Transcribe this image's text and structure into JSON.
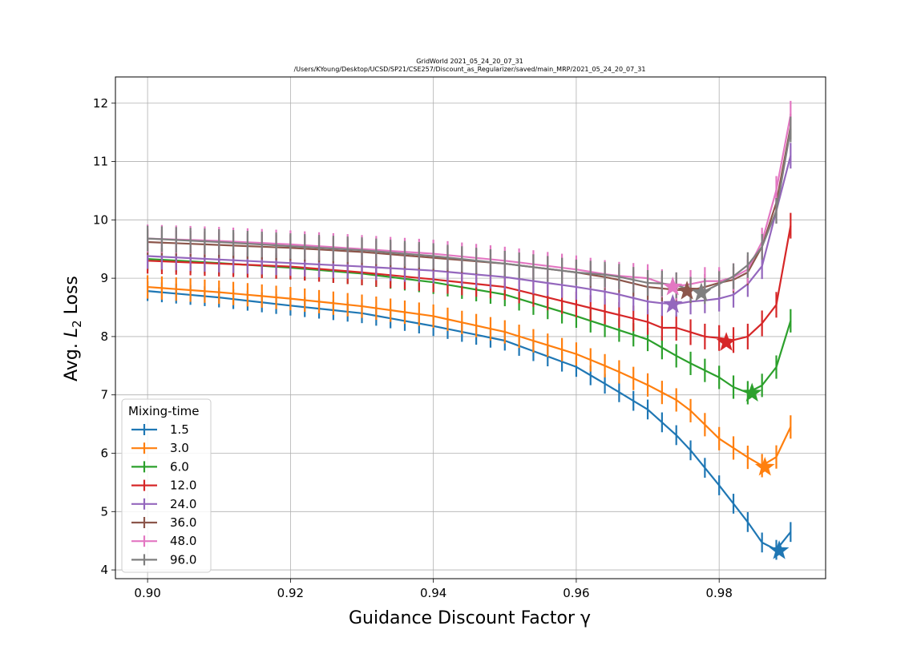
{
  "chart_data": {
    "type": "line",
    "title": "GridWorld  2021_05_24_20_07_31",
    "subtitle": "/Users/KYoung/Desktop/UCSD/SP21/CSE257/Discount_as_Regularizer/saved/main_MRP/2021_05_24_20_07_31",
    "xlabel": "Guidance Discount Factor γ",
    "ylabel_prefix": "Avg. ",
    "ylabel_var": "L",
    "ylabel_sub": "2",
    "ylabel_suffix": " Loss",
    "xlim": [
      0.8955,
      0.9949
    ],
    "ylim": [
      3.85,
      12.45
    ],
    "xticks": [
      0.9,
      0.92,
      0.94,
      0.96,
      0.98
    ],
    "xtick_labels": [
      "0.90",
      "0.92",
      "0.94",
      "0.96",
      "0.98"
    ],
    "yticks": [
      4,
      5,
      6,
      7,
      8,
      9,
      10,
      11,
      12
    ],
    "ytick_labels": [
      "4",
      "5",
      "6",
      "7",
      "8",
      "9",
      "10",
      "11",
      "12"
    ],
    "grid": true,
    "legend_title": "Mixing-time",
    "legend_position": "lower-left",
    "x": {
      "start": 0.9,
      "step": 0.002,
      "count": 46
    },
    "series": [
      {
        "name": "1.5",
        "color": "#1f77b4",
        "err": 0.17,
        "best": {
          "x": 0.9884,
          "y": 4.33
        },
        "points": [
          [
            0.9,
            8.78
          ],
          [
            0.91,
            8.67
          ],
          [
            0.92,
            8.53
          ],
          [
            0.93,
            8.4
          ],
          [
            0.94,
            8.18
          ],
          [
            0.95,
            7.93
          ],
          [
            0.96,
            7.48
          ],
          [
            0.965,
            7.12
          ],
          [
            0.97,
            6.75
          ],
          [
            0.975,
            6.2
          ],
          [
            0.98,
            5.45
          ],
          [
            0.984,
            4.82
          ],
          [
            0.9864,
            4.4
          ],
          [
            0.9884,
            4.33
          ],
          [
            0.99,
            4.65
          ]
        ]
      },
      {
        "name": "3.0",
        "color": "#ff7f0e",
        "err": 0.2,
        "best": {
          "x": 0.9864,
          "y": 5.76
        },
        "points": [
          [
            0.9,
            8.85
          ],
          [
            0.91,
            8.76
          ],
          [
            0.92,
            8.65
          ],
          [
            0.93,
            8.52
          ],
          [
            0.94,
            8.35
          ],
          [
            0.95,
            8.08
          ],
          [
            0.96,
            7.7
          ],
          [
            0.965,
            7.45
          ],
          [
            0.97,
            7.17
          ],
          [
            0.975,
            6.85
          ],
          [
            0.98,
            6.25
          ],
          [
            0.984,
            5.93
          ],
          [
            0.9864,
            5.76
          ],
          [
            0.9884,
            5.98
          ],
          [
            0.99,
            6.45
          ]
        ]
      },
      {
        "name": "6.0",
        "color": "#2ca02c",
        "err": 0.2,
        "best": {
          "x": 0.9846,
          "y": 7.03
        },
        "points": [
          [
            0.9,
            9.33
          ],
          [
            0.91,
            9.26
          ],
          [
            0.92,
            9.18
          ],
          [
            0.93,
            9.08
          ],
          [
            0.94,
            8.93
          ],
          [
            0.95,
            8.72
          ],
          [
            0.96,
            8.35
          ],
          [
            0.965,
            8.15
          ],
          [
            0.97,
            7.95
          ],
          [
            0.975,
            7.6
          ],
          [
            0.98,
            7.3
          ],
          [
            0.983,
            7.05
          ],
          [
            0.9846,
            7.03
          ],
          [
            0.9866,
            7.22
          ],
          [
            0.9884,
            7.55
          ],
          [
            0.99,
            8.27
          ]
        ]
      },
      {
        "name": "12.0",
        "color": "#d62728",
        "err": 0.22,
        "best": {
          "x": 0.981,
          "y": 7.9
        },
        "points": [
          [
            0.9,
            9.3
          ],
          [
            0.91,
            9.25
          ],
          [
            0.92,
            9.2
          ],
          [
            0.93,
            9.1
          ],
          [
            0.94,
            8.98
          ],
          [
            0.95,
            8.85
          ],
          [
            0.96,
            8.55
          ],
          [
            0.965,
            8.4
          ],
          [
            0.97,
            8.25
          ],
          [
            0.973,
            8.1
          ],
          [
            0.975,
            8.2
          ],
          [
            0.977,
            7.95
          ],
          [
            0.979,
            8.05
          ],
          [
            0.981,
            7.9
          ],
          [
            0.983,
            7.98
          ],
          [
            0.985,
            8.02
          ],
          [
            0.9866,
            8.35
          ],
          [
            0.9884,
            8.6
          ],
          [
            0.99,
            9.9
          ]
        ]
      },
      {
        "name": "24.0",
        "color": "#9467bd",
        "err": 0.22,
        "best": {
          "x": 0.9735,
          "y": 8.55
        },
        "points": [
          [
            0.9,
            9.38
          ],
          [
            0.91,
            9.32
          ],
          [
            0.92,
            9.26
          ],
          [
            0.93,
            9.2
          ],
          [
            0.94,
            9.13
          ],
          [
            0.95,
            9.02
          ],
          [
            0.96,
            8.85
          ],
          [
            0.965,
            8.75
          ],
          [
            0.97,
            8.6
          ],
          [
            0.9735,
            8.55
          ],
          [
            0.976,
            8.6
          ],
          [
            0.978,
            8.62
          ],
          [
            0.98,
            8.65
          ],
          [
            0.983,
            8.75
          ],
          [
            0.985,
            9.05
          ],
          [
            0.9866,
            9.3
          ],
          [
            0.9884,
            10.4
          ],
          [
            0.99,
            11.1
          ]
        ]
      },
      {
        "name": "36.0",
        "color": "#8c564b",
        "err": 0.22,
        "best": {
          "x": 0.9755,
          "y": 8.78
        },
        "points": [
          [
            0.9,
            9.62
          ],
          [
            0.91,
            9.57
          ],
          [
            0.92,
            9.52
          ],
          [
            0.93,
            9.45
          ],
          [
            0.94,
            9.35
          ],
          [
            0.95,
            9.25
          ],
          [
            0.96,
            9.1
          ],
          [
            0.965,
            9.0
          ],
          [
            0.97,
            8.85
          ],
          [
            0.9755,
            8.78
          ],
          [
            0.978,
            8.85
          ],
          [
            0.98,
            8.92
          ],
          [
            0.983,
            9.0
          ],
          [
            0.985,
            9.2
          ],
          [
            0.9866,
            9.75
          ],
          [
            0.9884,
            10.45
          ],
          [
            0.99,
            11.6
          ]
        ]
      },
      {
        "name": "48.0",
        "color": "#e377c2",
        "err": 0.24,
        "best": {
          "x": 0.9735,
          "y": 8.85
        },
        "points": [
          [
            0.9,
            9.68
          ],
          [
            0.91,
            9.64
          ],
          [
            0.92,
            9.58
          ],
          [
            0.93,
            9.5
          ],
          [
            0.94,
            9.42
          ],
          [
            0.95,
            9.3
          ],
          [
            0.96,
            9.15
          ],
          [
            0.965,
            9.05
          ],
          [
            0.97,
            9.0
          ],
          [
            0.9735,
            8.85
          ],
          [
            0.976,
            8.9
          ],
          [
            0.978,
            8.95
          ],
          [
            0.98,
            8.95
          ],
          [
            0.983,
            9.05
          ],
          [
            0.985,
            9.25
          ],
          [
            0.9866,
            9.85
          ],
          [
            0.9884,
            10.7
          ],
          [
            0.99,
            11.8
          ]
        ]
      },
      {
        "name": "96.0",
        "color": "#7f7f7f",
        "err": 0.22,
        "best": {
          "x": 0.9775,
          "y": 8.75
        },
        "points": [
          [
            0.9,
            9.68
          ],
          [
            0.91,
            9.62
          ],
          [
            0.92,
            9.55
          ],
          [
            0.93,
            9.48
          ],
          [
            0.94,
            9.38
          ],
          [
            0.95,
            9.25
          ],
          [
            0.96,
            9.1
          ],
          [
            0.965,
            9.05
          ],
          [
            0.97,
            8.92
          ],
          [
            0.9735,
            8.9
          ],
          [
            0.9755,
            8.82
          ],
          [
            0.9775,
            8.75
          ],
          [
            0.98,
            8.9
          ],
          [
            0.983,
            9.1
          ],
          [
            0.985,
            9.35
          ],
          [
            0.9866,
            9.65
          ],
          [
            0.9884,
            10.3
          ],
          [
            0.99,
            11.55
          ]
        ]
      }
    ]
  }
}
